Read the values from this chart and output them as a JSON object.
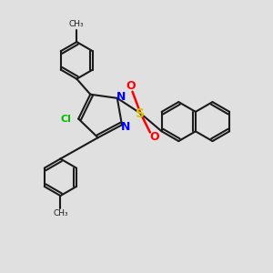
{
  "bg_color": "#e0e0e0",
  "bond_color": "#1a1a1a",
  "bond_width": 1.5,
  "N_color": "#0000ff",
  "S_color": "#cccc00",
  "O_color": "#ff0000",
  "Cl_color": "#00bb00",
  "figsize": [
    3.0,
    3.0
  ],
  "dpi": 100,
  "xlim": [
    0,
    10
  ],
  "ylim": [
    0,
    10
  ]
}
